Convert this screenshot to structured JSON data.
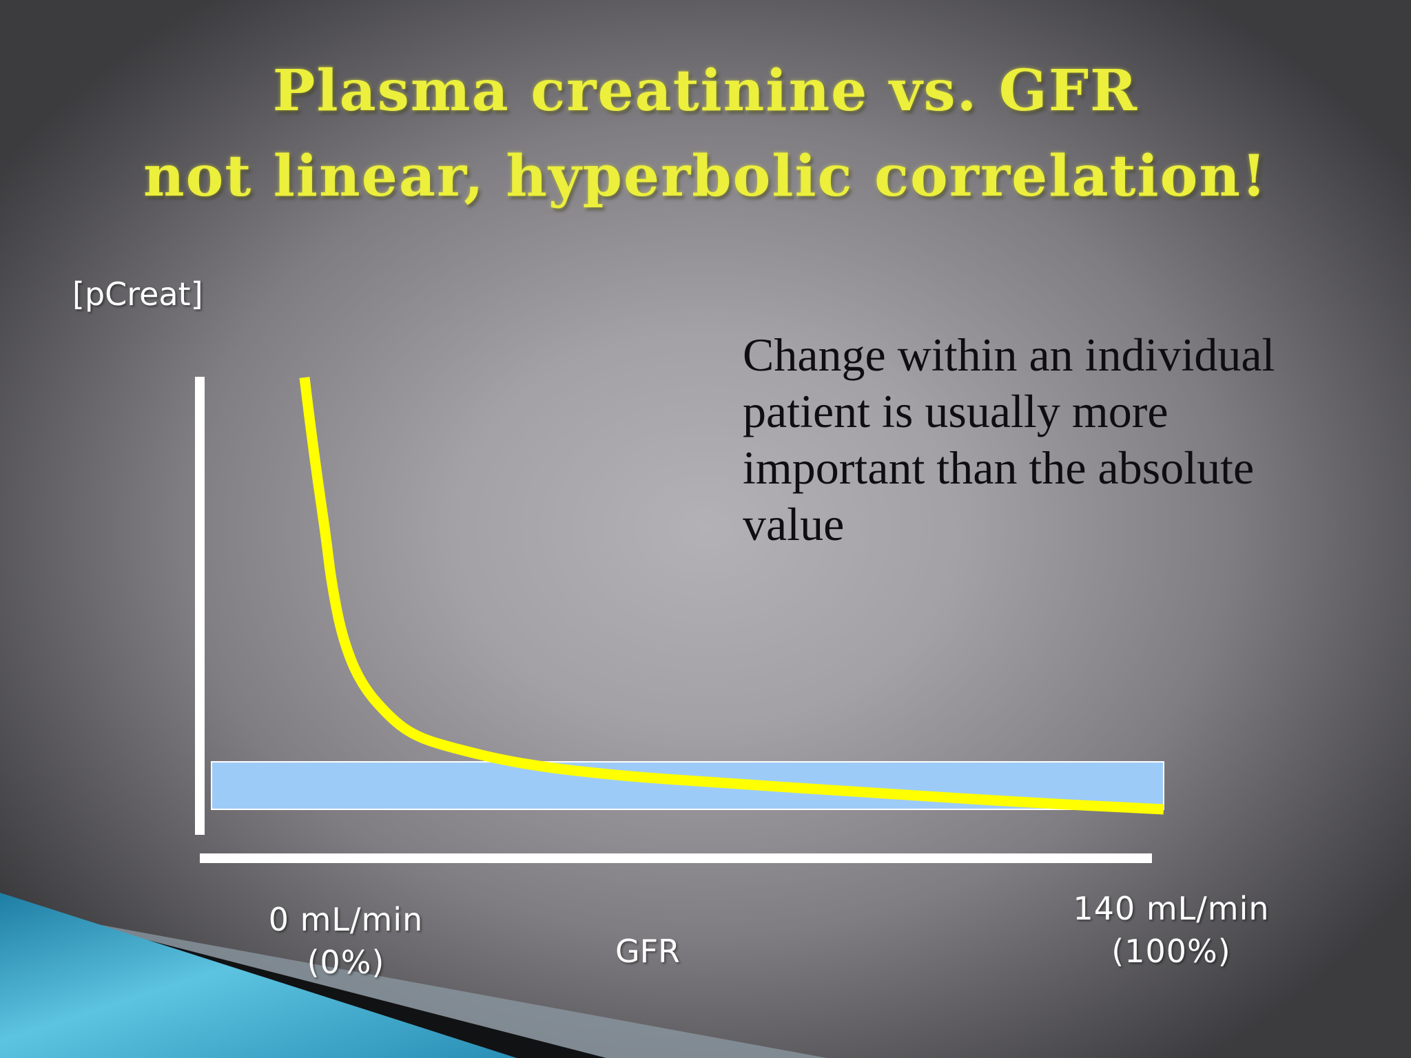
{
  "slide": {
    "title_line1": "Plasma creatinine vs. GFR",
    "title_line2": "not linear, hyperbolic correlation!",
    "note_text": "Change within an individual patient is usually more important than the absolute value"
  },
  "colors": {
    "title": "#ecef3c",
    "curve": "#ffff00",
    "normal_band_fill": "#9dcbf7",
    "axis": "#ffffff",
    "corner_accent": "#4fb6d6"
  },
  "chart_data": {
    "type": "line",
    "title": "Plasma creatinine vs. GFR",
    "subtitle": "not linear, hyperbolic correlation!",
    "xlabel": "GFR",
    "ylabel": "[pCreat]",
    "x_tick_labels": [
      {
        "line1": "0 mL/min",
        "line2": "(0%)"
      },
      {
        "line1": "140 mL/min",
        "line2": "(100%)"
      }
    ],
    "xlim": [
      0,
      140
    ],
    "ylim": [
      0,
      10
    ],
    "grid": false,
    "legend": "none",
    "series": [
      {
        "x": [
          15.3,
          16.1,
          17.2,
          18.4,
          19.2,
          20.8,
          23.5,
          27.8,
          31.2,
          36.0,
          46.5,
          60.0,
          76.0,
          97.0,
          120.0,
          140.0
        ],
        "y": [
          10.0,
          8.95,
          7.63,
          6.32,
          5.26,
          3.95,
          2.89,
          2.11,
          1.71,
          1.45,
          1.05,
          0.79,
          0.61,
          0.39,
          0.16,
          0.0
        ]
      }
    ],
    "bands": [
      {
        "y_low": 0.0,
        "y_high": 1.1
      }
    ]
  }
}
